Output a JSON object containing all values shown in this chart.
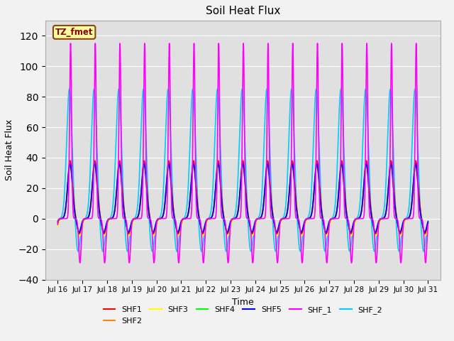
{
  "title": "Soil Heat Flux",
  "xlabel": "Time",
  "ylabel": "Soil Heat Flux",
  "xlim_days": [
    15.5,
    31.5
  ],
  "ylim": [
    -40,
    130
  ],
  "yticks": [
    -40,
    -20,
    0,
    20,
    40,
    60,
    80,
    100,
    120
  ],
  "xtick_positions": [
    16,
    17,
    18,
    19,
    20,
    21,
    22,
    23,
    24,
    25,
    26,
    27,
    28,
    29,
    30,
    31
  ],
  "xtick_labels": [
    "Jul 16",
    "Jul 17",
    "Jul 18",
    "Jul 19",
    "Jul 20",
    "Jul 21",
    "Jul 22",
    "Jul 23",
    "Jul 24",
    "Jul 25",
    "Jul 26",
    "Jul 27",
    "Jul 28",
    "Jul 29",
    "Jul 30",
    "Jul 31"
  ],
  "series_order": [
    "SHF_2",
    "SHF_1",
    "SHF3",
    "SHF2",
    "SHF4",
    "SHF1",
    "SHF5"
  ],
  "series": {
    "SHF1": {
      "color": "#ff0000",
      "linewidth": 1.2,
      "zorder": 5
    },
    "SHF2": {
      "color": "#ff8800",
      "linewidth": 1.2,
      "zorder": 4
    },
    "SHF3": {
      "color": "#ffff00",
      "linewidth": 1.2,
      "zorder": 3
    },
    "SHF4": {
      "color": "#00ff00",
      "linewidth": 1.2,
      "zorder": 4
    },
    "SHF5": {
      "color": "#0000ff",
      "linewidth": 1.2,
      "zorder": 6
    },
    "SHF_1": {
      "color": "#ff00ff",
      "linewidth": 1.2,
      "zorder": 7
    },
    "SHF_2": {
      "color": "#00ccff",
      "linewidth": 1.2,
      "zorder": 2
    }
  },
  "annotation_text": "TZ_fmet",
  "legend_ncol": 6,
  "background_color": "#ebebeb",
  "plot_bg_color": "#e0e0e0"
}
